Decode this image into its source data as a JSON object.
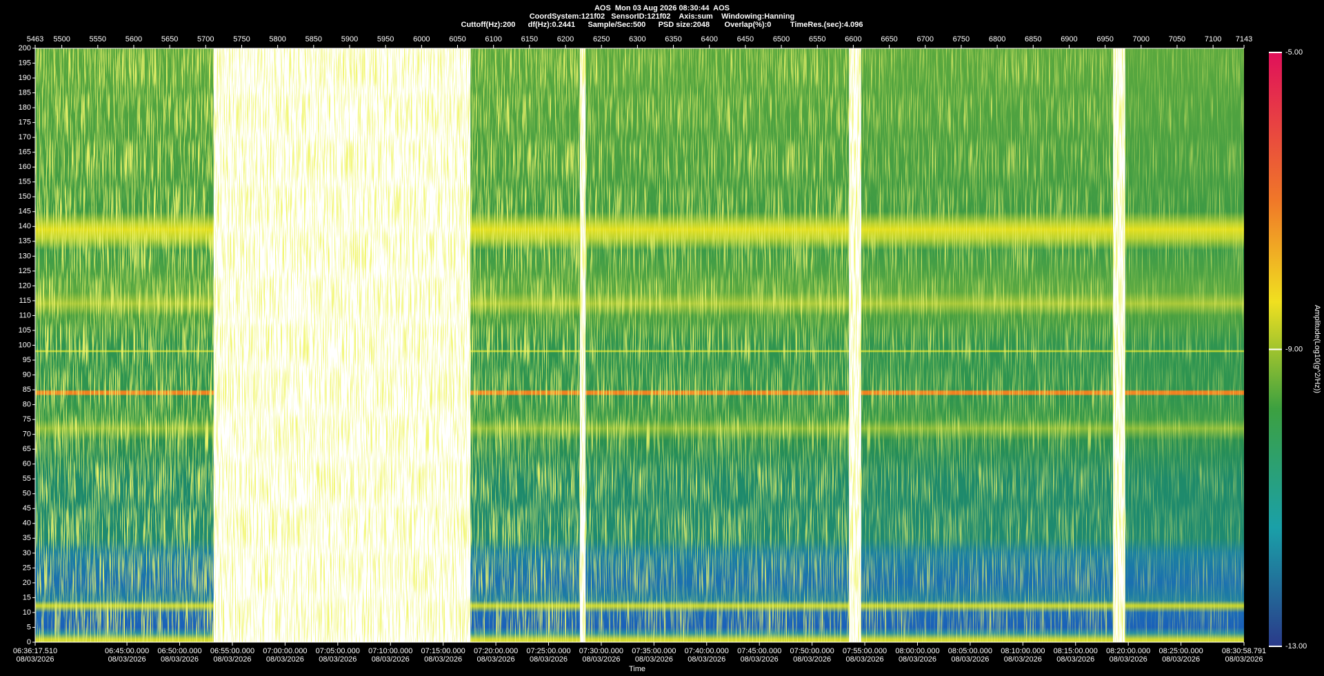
{
  "chart_data": {
    "type": "spectrogram",
    "title": "AOS  Mon 03 Aug 2026 08:30:44  AOS",
    "subtitle": "CoordSystem:121f02   SensorID:121f02    Axis:sum    Windowing:Hanning",
    "parameters": "Cuttoff(Hz):200      df(Hz):0.2441      Sample/Sec:500      PSD size:2048       Overlap(%):0         TimeRes.(sec):4.096",
    "x_label": "Time",
    "xlim": [
      5463,
      7143
    ],
    "xticks": [
      5463,
      5500,
      5550,
      5600,
      5650,
      5700,
      5750,
      5800,
      5850,
      5900,
      5950,
      6000,
      6050,
      6100,
      6150,
      6200,
      6250,
      6300,
      6350,
      6400,
      6450,
      6500,
      6550,
      6600,
      6650,
      6700,
      6750,
      6800,
      6850,
      6900,
      6950,
      7000,
      7050,
      7100,
      7143
    ],
    "x2lim": [
      23777.51,
      30658.791
    ],
    "x2ticks": [
      {
        "value": 23777.51,
        "label": "06:36:17.510",
        "date": "08/03/2026"
      },
      {
        "value": 24300,
        "label": "06:45:00.000",
        "date": "08/03/2026"
      },
      {
        "value": 24600,
        "label": "06:50:00.000",
        "date": "08/03/2026"
      },
      {
        "value": 24900,
        "label": "06:55:00.000",
        "date": "08/03/2026"
      },
      {
        "value": 25200,
        "label": "07:00:00.000",
        "date": "08/03/2026"
      },
      {
        "value": 25500,
        "label": "07:05:00.000",
        "date": "08/03/2026"
      },
      {
        "value": 25800,
        "label": "07:10:00.000",
        "date": "08/03/2026"
      },
      {
        "value": 26100,
        "label": "07:15:00.000",
        "date": "08/03/2026"
      },
      {
        "value": 26400,
        "label": "07:20:00.000",
        "date": "08/03/2026"
      },
      {
        "value": 26700,
        "label": "07:25:00.000",
        "date": "08/03/2026"
      },
      {
        "value": 27000,
        "label": "07:30:00.000",
        "date": "08/03/2026"
      },
      {
        "value": 27300,
        "label": "07:35:00.000",
        "date": "08/03/2026"
      },
      {
        "value": 27600,
        "label": "07:40:00.000",
        "date": "08/03/2026"
      },
      {
        "value": 27900,
        "label": "07:45:00.000",
        "date": "08/03/2026"
      },
      {
        "value": 28200,
        "label": "07:50:00.000",
        "date": "08/03/2026"
      },
      {
        "value": 28500,
        "label": "07:55:00.000",
        "date": "08/03/2026"
      },
      {
        "value": 28800,
        "label": "08:00:00.000",
        "date": "08/03/2026"
      },
      {
        "value": 29100,
        "label": "08:05:00.000",
        "date": "08/03/2026"
      },
      {
        "value": 29400,
        "label": "08:10:00.000",
        "date": "08/03/2026"
      },
      {
        "value": 29700,
        "label": "08:15:00.000",
        "date": "08/03/2026"
      },
      {
        "value": 30000,
        "label": "08:20:00.000",
        "date": "08/03/2026"
      },
      {
        "value": 30300,
        "label": "08:25:00.000",
        "date": "08/03/2026"
      },
      {
        "value": 30658.791,
        "label": "08:30:58.791",
        "date": "08/03/2026"
      }
    ],
    "ylim": [
      0,
      200
    ],
    "yticks": [
      0,
      5,
      10,
      15,
      20,
      25,
      30,
      35,
      40,
      45,
      50,
      55,
      60,
      65,
      70,
      75,
      80,
      85,
      90,
      95,
      100,
      105,
      110,
      115,
      120,
      125,
      130,
      135,
      140,
      145,
      150,
      155,
      160,
      165,
      170,
      175,
      180,
      185,
      190,
      195,
      200
    ],
    "segments": [
      [
        5463,
        5711
      ],
      [
        6068,
        6220
      ],
      [
        6228,
        6594
      ],
      [
        6611,
        6961
      ],
      [
        6978,
        7143
      ]
    ],
    "colorbar": {
      "label": "Amplitude(Log10(g^2/Hz))",
      "lim": [
        -13,
        -5
      ],
      "ticks": [
        {
          "value": -5,
          "label": "-5.00"
        },
        {
          "value": -9,
          "label": "-9.00"
        },
        {
          "value": -13,
          "label": "-13.00"
        }
      ]
    }
  }
}
